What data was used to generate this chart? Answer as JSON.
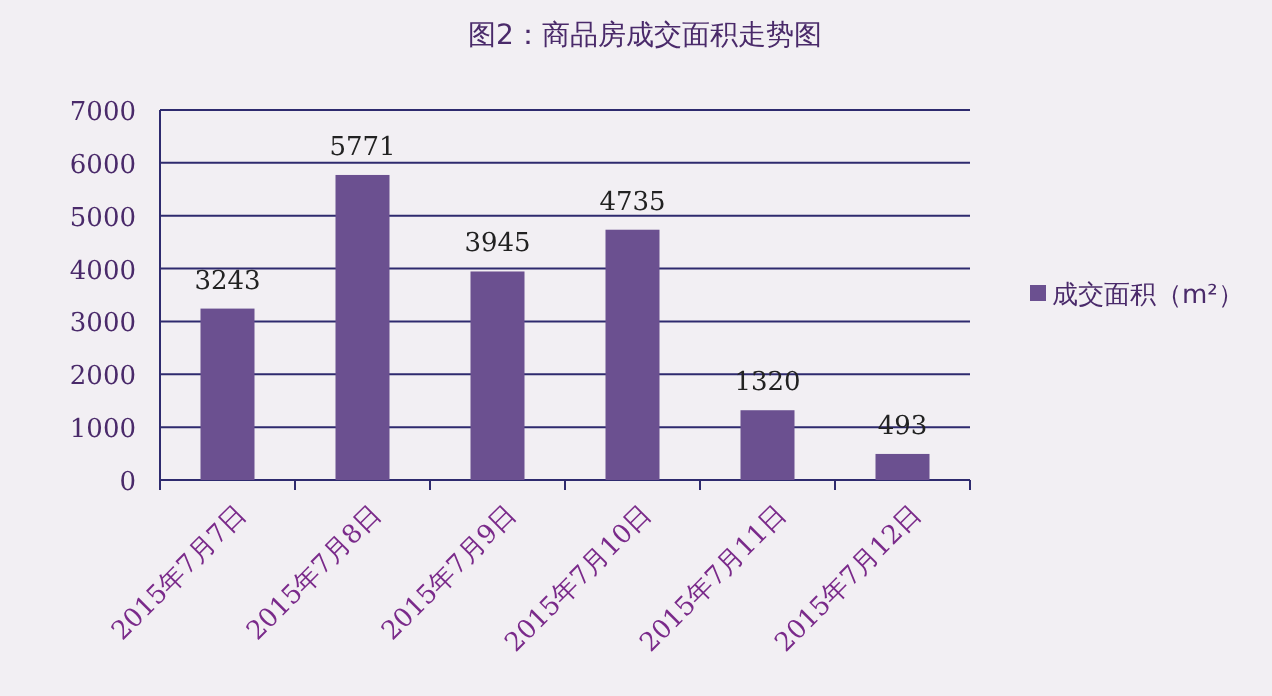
{
  "chart_data": {
    "type": "bar",
    "title": "图2：商品房成交面积走势图",
    "categories": [
      "2015年7月7日",
      "2015年7月8日",
      "2015年7月9日",
      "2015年7月10日",
      "2015年7月11日",
      "2015年7月12日"
    ],
    "series": [
      {
        "name": "成交面积（m²）",
        "color": "#6b5090",
        "values": [
          3243,
          5771,
          3945,
          4735,
          1320,
          493
        ]
      }
    ],
    "ylim": [
      0,
      7000
    ],
    "yticks": [
      0,
      1000,
      2000,
      3000,
      4000,
      5000,
      6000,
      7000
    ],
    "grid": "y",
    "legend": "right",
    "data_labels": true
  }
}
